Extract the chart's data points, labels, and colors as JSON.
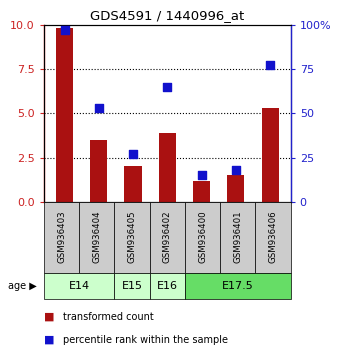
{
  "title": "GDS4591 / 1440996_at",
  "samples": [
    "GSM936403",
    "GSM936404",
    "GSM936405",
    "GSM936402",
    "GSM936400",
    "GSM936401",
    "GSM936406"
  ],
  "red_values": [
    9.8,
    3.5,
    2.0,
    3.9,
    1.2,
    1.5,
    5.3
  ],
  "blue_values": [
    97,
    53,
    27,
    65,
    15,
    18,
    77
  ],
  "left_ylim": [
    0,
    10
  ],
  "right_ylim": [
    0,
    100
  ],
  "left_yticks": [
    0,
    2.5,
    5,
    7.5,
    10
  ],
  "right_yticks": [
    0,
    25,
    50,
    75,
    100
  ],
  "right_yticklabels": [
    "0",
    "25",
    "50",
    "75",
    "100%"
  ],
  "hlines": [
    2.5,
    5.0,
    7.5
  ],
  "age_groups": [
    {
      "label": "E14",
      "indices": [
        0,
        1
      ],
      "color": "#ccffcc"
    },
    {
      "label": "E15",
      "indices": [
        2
      ],
      "color": "#ccffcc"
    },
    {
      "label": "E16",
      "indices": [
        3
      ],
      "color": "#ccffcc"
    },
    {
      "label": "E17.5",
      "indices": [
        4,
        5,
        6
      ],
      "color": "#66dd66"
    }
  ],
  "bar_color": "#aa1111",
  "dot_color": "#1111cc",
  "bar_width": 0.5,
  "dot_size": 35,
  "legend_red_label": "transformed count",
  "legend_blue_label": "percentile rank within the sample",
  "age_label": "age",
  "left_axis_color": "#cc2222",
  "right_axis_color": "#2222cc",
  "bg_color": "#cccccc",
  "plot_bg_color": "#ffffff"
}
